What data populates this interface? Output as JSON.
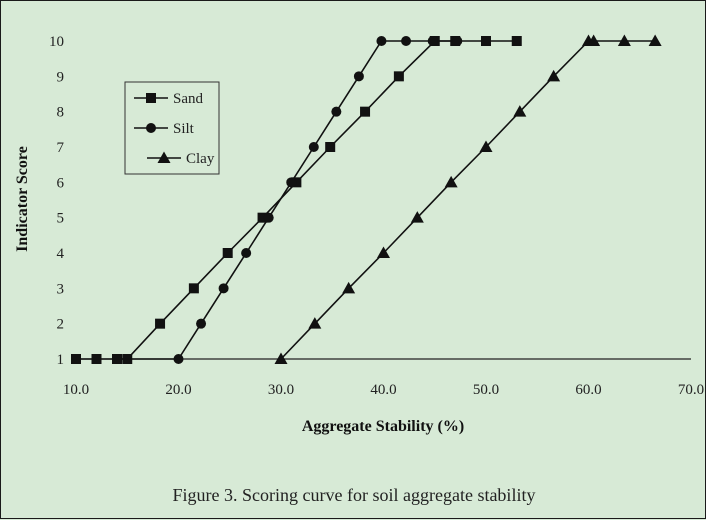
{
  "chart_data": {
    "type": "line",
    "xlabel": "Aggregate Stability (%)",
    "ylabel": "Indicator Score",
    "xlim": [
      10,
      70
    ],
    "ylim": [
      1,
      10
    ],
    "x_ticks": [
      "10.0",
      "20.0",
      "30.0",
      "40.0",
      "50.0",
      "60.0",
      "70.0"
    ],
    "y_ticks": [
      "1",
      "2",
      "3",
      "4",
      "5",
      "6",
      "7",
      "8",
      "9",
      "10"
    ],
    "legend_position": "top-left",
    "grid": false,
    "series": [
      {
        "name": "Sand",
        "marker": "square",
        "points": [
          [
            10,
            1
          ],
          [
            12,
            1
          ],
          [
            14,
            1
          ],
          [
            15,
            1
          ],
          [
            18.2,
            2
          ],
          [
            21.5,
            3
          ],
          [
            24.8,
            4
          ],
          [
            28.2,
            5
          ],
          [
            31.5,
            6
          ],
          [
            34.8,
            7
          ],
          [
            38.2,
            8
          ],
          [
            41.5,
            9
          ],
          [
            45,
            10
          ],
          [
            47,
            10
          ],
          [
            50,
            10
          ],
          [
            53,
            10
          ]
        ]
      },
      {
        "name": "Silt",
        "marker": "circle",
        "points": [
          [
            14,
            1
          ],
          [
            20,
            1
          ],
          [
            22.2,
            2
          ],
          [
            24.4,
            3
          ],
          [
            26.6,
            4
          ],
          [
            28.8,
            5
          ],
          [
            31,
            6
          ],
          [
            33.2,
            7
          ],
          [
            35.4,
            8
          ],
          [
            37.6,
            9
          ],
          [
            39.8,
            10
          ],
          [
            42.2,
            10
          ],
          [
            44.8,
            10
          ],
          [
            47.2,
            10
          ]
        ]
      },
      {
        "name": "Clay",
        "marker": "triangle",
        "points": [
          [
            30,
            1
          ],
          [
            33.3,
            2
          ],
          [
            36.6,
            3
          ],
          [
            40,
            4
          ],
          [
            43.3,
            5
          ],
          [
            46.6,
            6
          ],
          [
            50,
            7
          ],
          [
            53.3,
            8
          ],
          [
            56.6,
            9
          ],
          [
            60,
            10
          ],
          [
            60.5,
            10
          ],
          [
            63.5,
            10
          ],
          [
            66.5,
            10
          ]
        ]
      }
    ]
  },
  "caption": "Figure 3. Scoring curve for soil aggregate stability"
}
